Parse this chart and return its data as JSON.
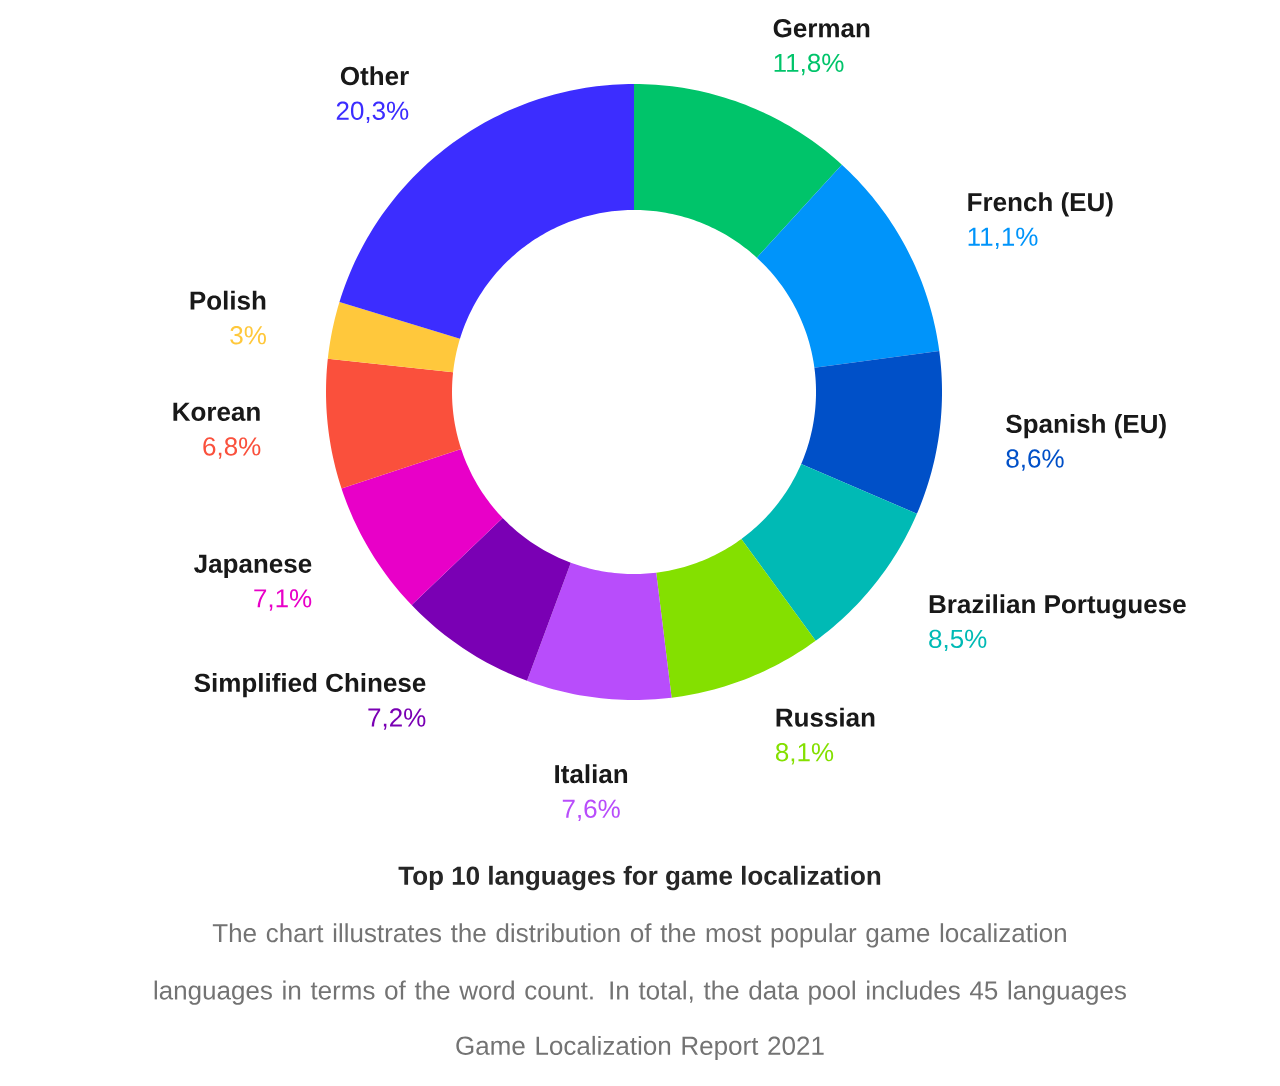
{
  "chart_data": {
    "type": "donut",
    "title": "Top 10 languages for game localization",
    "annotations": [
      "The chart illustrates the distribution of the most popular game localization languages in terms of the word count. In total, the data pool includes 45 languages",
      "Game Localization Report 2021"
    ],
    "categories": [
      "German",
      "French (EU)",
      "Spanish (EU)",
      "Brazilian Portuguese",
      "Russian",
      "Italian",
      "Simplified Chinese",
      "Japanese",
      "Korean",
      "Polish",
      "Other"
    ],
    "values": [
      11.8,
      11.1,
      8.6,
      8.5,
      8.1,
      7.6,
      7.2,
      7.1,
      6.8,
      3,
      20.3
    ],
    "value_labels": [
      "11,8%",
      "11,1%",
      "8,6%",
      "8,5%",
      "8,1%",
      "7,6%",
      "7,2%",
      "7,1%",
      "6,8%",
      "3%",
      "20,3%"
    ],
    "colors": [
      "#00c46a",
      "#0094fa",
      "#0050c8",
      "#00bab5",
      "#84e000",
      "#b84dfb",
      "#7a00b4",
      "#e800c8",
      "#fa503c",
      "#ffc83c",
      "#3c2dff"
    ]
  }
}
